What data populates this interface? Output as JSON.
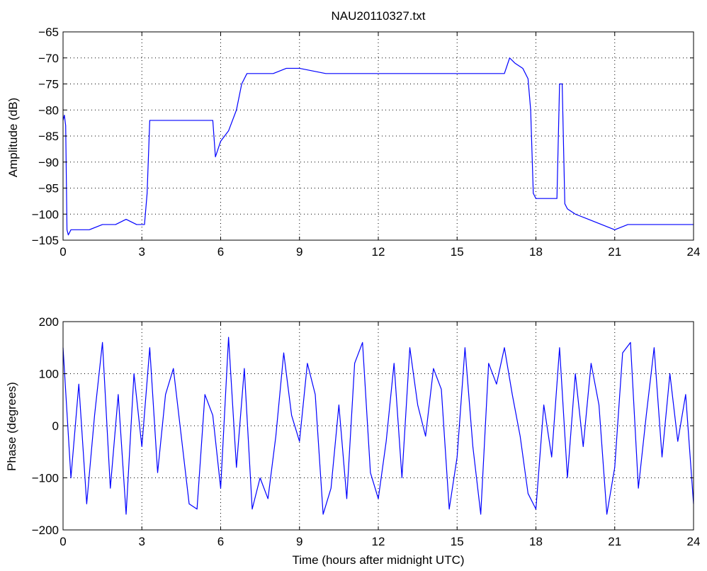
{
  "chart_data": [
    {
      "type": "line",
      "title": "NAU20110327.txt",
      "xlabel": "",
      "ylabel": "Amplitude (dB)",
      "xlim": [
        0,
        24
      ],
      "ylim": [
        -105,
        -65
      ],
      "xticks": [
        "0",
        "3",
        "6",
        "9",
        "12",
        "15",
        "18",
        "21",
        "24"
      ],
      "yticks": [
        "-65",
        "-70",
        "-75",
        "-80",
        "-85",
        "-90",
        "-95",
        "-100",
        "-105"
      ],
      "grid": true,
      "line_color": "#0000ff",
      "series": [
        {
          "x": [
            0,
            0.05,
            0.1,
            0.15,
            0.2,
            0.3,
            0.5,
            1.0,
            1.5,
            2.0,
            2.4,
            2.8,
            3.1,
            3.2,
            3.3,
            3.5,
            4.0,
            4.5,
            5.0,
            5.5,
            5.7,
            5.8,
            6.0,
            6.3,
            6.6,
            6.8,
            7.0,
            7.5,
            8.0,
            8.5,
            9.0,
            10.0,
            11.0,
            12.0,
            13.0,
            14.0,
            15.0,
            16.0,
            16.8,
            17.0,
            17.2,
            17.5,
            17.7,
            17.8,
            17.9,
            18.0,
            18.5,
            18.8,
            18.9,
            19.0,
            19.1,
            19.2,
            19.5,
            20.0,
            20.5,
            21.0,
            21.5,
            22.0,
            22.5,
            23.0,
            23.5,
            24.0
          ],
          "y": [
            -82,
            -81,
            -83,
            -103,
            -104,
            -103,
            -103,
            -103,
            -102,
            -102,
            -101,
            -102,
            -102,
            -96,
            -82,
            -82,
            -82,
            -82,
            -82,
            -82,
            -82,
            -89,
            -86,
            -84,
            -80,
            -75,
            -73,
            -73,
            -73,
            -72,
            -72,
            -73,
            -73,
            -73,
            -73,
            -73,
            -73,
            -73,
            -73,
            -70,
            -71,
            -72,
            -74,
            -80,
            -96,
            -97,
            -97,
            -97,
            -75,
            -75,
            -98,
            -99,
            -100,
            -101,
            -102,
            -103,
            -102,
            -102,
            -102,
            -102,
            -102,
            -102
          ]
        }
      ]
    },
    {
      "type": "line",
      "title": "",
      "xlabel": "Time (hours after midnight UTC)",
      "ylabel": "Phase (degrees)",
      "xlim": [
        0,
        24
      ],
      "ylim": [
        -200,
        200
      ],
      "xticks": [
        "0",
        "3",
        "6",
        "9",
        "12",
        "15",
        "18",
        "21",
        "24"
      ],
      "yticks": [
        "200",
        "100",
        "0",
        "-100",
        "-200"
      ],
      "grid": true,
      "line_color": "#0000ff",
      "series": [
        {
          "x": [
            0,
            0.3,
            0.6,
            0.9,
            1.2,
            1.5,
            1.8,
            2.1,
            2.4,
            2.7,
            3.0,
            3.3,
            3.6,
            3.9,
            4.2,
            4.5,
            4.8,
            5.1,
            5.4,
            5.7,
            6.0,
            6.3,
            6.6,
            6.9,
            7.2,
            7.5,
            7.8,
            8.1,
            8.4,
            8.7,
            9.0,
            9.3,
            9.6,
            9.9,
            10.2,
            10.5,
            10.8,
            11.1,
            11.4,
            11.7,
            12.0,
            12.3,
            12.6,
            12.9,
            13.2,
            13.5,
            13.8,
            14.1,
            14.4,
            14.7,
            15.0,
            15.3,
            15.6,
            15.9,
            16.2,
            16.5,
            16.8,
            17.1,
            17.4,
            17.7,
            18.0,
            18.3,
            18.6,
            18.9,
            19.2,
            19.5,
            19.8,
            20.1,
            20.4,
            20.7,
            21.0,
            21.3,
            21.6,
            21.9,
            22.2,
            22.5,
            22.8,
            23.1,
            23.4,
            23.7,
            24.0
          ],
          "y": [
            150,
            -100,
            80,
            -150,
            20,
            160,
            -120,
            60,
            -170,
            100,
            -40,
            150,
            -90,
            60,
            110,
            -20,
            -150,
            -160,
            60,
            20,
            -120,
            170,
            -80,
            110,
            -160,
            -100,
            -140,
            -20,
            140,
            20,
            -30,
            120,
            60,
            -170,
            -120,
            40,
            -140,
            120,
            160,
            -90,
            -140,
            -30,
            120,
            -100,
            150,
            40,
            -20,
            110,
            70,
            -160,
            -60,
            150,
            -40,
            -170,
            120,
            80,
            150,
            60,
            -20,
            -130,
            -160,
            40,
            -60,
            150,
            -100,
            100,
            -40,
            120,
            40,
            -170,
            -80,
            140,
            160,
            -120,
            20,
            150,
            -60,
            100,
            -30,
            60,
            -150
          ]
        }
      ]
    }
  ]
}
